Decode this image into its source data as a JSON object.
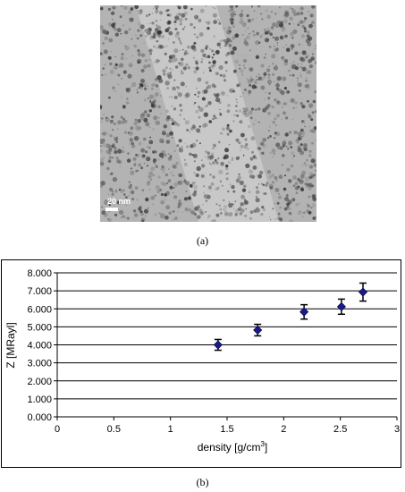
{
  "figure": {
    "image_scale_label": "20 nm",
    "caption_a": "(a)",
    "caption_b": "(b)"
  },
  "chart_data": {
    "type": "scatter",
    "xlabel": "density [g/cm",
    "xlabel_sup": "3",
    "xlabel_tail": "]",
    "ylabel": "Z [MRayl]",
    "xlim": [
      0,
      3
    ],
    "ylim": [
      0,
      8
    ],
    "x_ticks": [
      "0",
      "0.5",
      "1",
      "1.5",
      "2",
      "2.5",
      "3"
    ],
    "y_ticks": [
      "0.000",
      "1.000",
      "2.000",
      "3.000",
      "4.000",
      "5.000",
      "6.000",
      "7.000",
      "8.000"
    ],
    "grid": "horizontal",
    "marker": "diamond",
    "marker_color": "#1a1a8c",
    "points": [
      {
        "x": 1.42,
        "y": 4.0,
        "err": 0.3
      },
      {
        "x": 1.77,
        "y": 4.82,
        "err": 0.32
      },
      {
        "x": 2.18,
        "y": 5.83,
        "err": 0.4
      },
      {
        "x": 2.51,
        "y": 6.12,
        "err": 0.42
      },
      {
        "x": 2.7,
        "y": 6.93,
        "err": 0.5
      }
    ]
  }
}
